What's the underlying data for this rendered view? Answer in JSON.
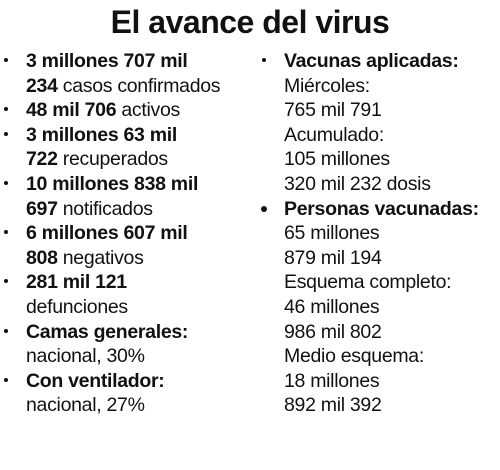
{
  "title": "El avance del virus",
  "left": [
    {
      "lines": [
        {
          "b": "3 millones 707 mil",
          "r": ""
        },
        {
          "b": "234",
          "r": " casos confirmados"
        }
      ]
    },
    {
      "lines": [
        {
          "b": "48 mil 706",
          "r": " activos"
        }
      ]
    },
    {
      "lines": [
        {
          "b": "3 millones 63 mil",
          "r": ""
        },
        {
          "b": "722",
          "r": " recuperados"
        }
      ]
    },
    {
      "lines": [
        {
          "b": "10 millones 838 mil",
          "r": ""
        },
        {
          "b": "697",
          "r": " notificados"
        }
      ]
    },
    {
      "lines": [
        {
          "b": "6 millones 607 mil",
          "r": ""
        },
        {
          "b": "808",
          "r": " negativos"
        }
      ]
    },
    {
      "lines": [
        {
          "b": "281 mil 121",
          "r": ""
        },
        {
          "b": "",
          "r": "defunciones"
        }
      ]
    },
    {
      "lines": [
        {
          "b": "Camas generales:",
          "r": ""
        },
        {
          "b": "",
          "r": "nacional, 30%"
        }
      ]
    },
    {
      "lines": [
        {
          "b": "Con ventilador:",
          "r": ""
        },
        {
          "b": "",
          "r": "nacional, 27%"
        }
      ]
    }
  ],
  "right": [
    {
      "lines": [
        {
          "b": "Vacunas aplicadas:",
          "r": ""
        },
        {
          "b": "",
          "r": "Miércoles:"
        },
        {
          "b": "",
          "r": "765 mil 791"
        },
        {
          "b": "",
          "r": "Acumulado:"
        },
        {
          "b": "",
          "r": "105 millones"
        },
        {
          "b": "",
          "r": "320 mil 232 dosis"
        }
      ]
    },
    {
      "lines": [
        {
          "b": "Personas vacunadas:",
          "r": ""
        },
        {
          "b": "",
          "r": "65 millones"
        },
        {
          "b": "",
          "r": "879 mil 194"
        },
        {
          "b": "",
          "r": "Esquema completo:"
        },
        {
          "b": "",
          "r": "46 millones"
        },
        {
          "b": "",
          "r": "986 mil 802"
        },
        {
          "b": "",
          "r": "Medio esquema:"
        },
        {
          "b": "",
          "r": "18 millones"
        },
        {
          "b": "",
          "r": "892 mil 392"
        }
      ]
    }
  ]
}
